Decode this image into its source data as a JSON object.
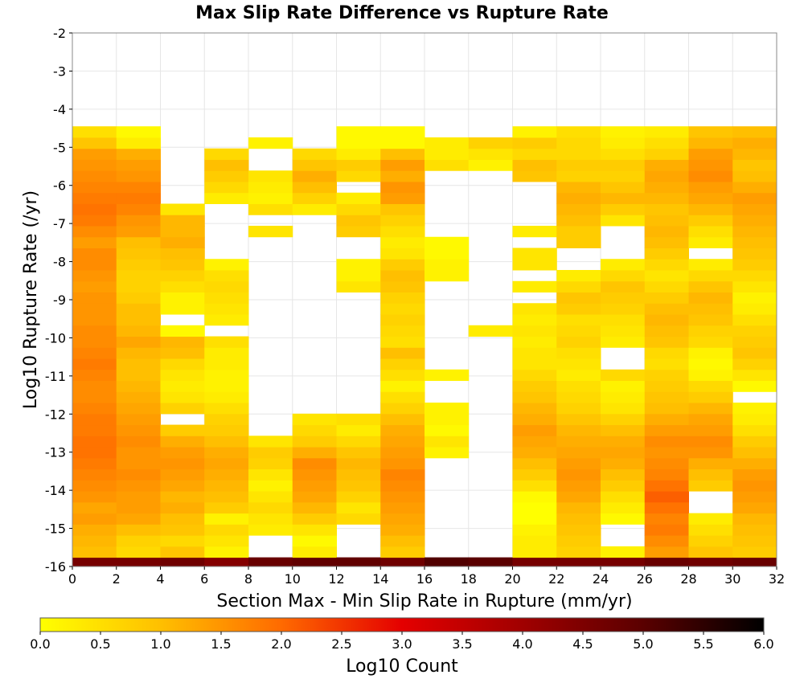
{
  "chart_data": {
    "type": "heatmap",
    "title": "Max Slip Rate Difference vs Rupture Rate",
    "xlabel": "Section Max - Min Slip Rate in Rupture (mm/yr)",
    "ylabel": "Log10 Rupture Rate (/yr)",
    "xlim": [
      0,
      32
    ],
    "ylim": [
      -16,
      -2
    ],
    "x_ticks": [
      "0",
      "2",
      "4",
      "6",
      "8",
      "10",
      "12",
      "14",
      "16",
      "18",
      "20",
      "22",
      "24",
      "26",
      "28",
      "30",
      "32"
    ],
    "y_ticks": [
      "-2",
      "-3",
      "-4",
      "-5",
      "-6",
      "-7",
      "-8",
      "-9",
      "-10",
      "-11",
      "-12",
      "-13",
      "-14",
      "-15",
      "-16"
    ],
    "grid": true,
    "x_bin_width": 2,
    "y_bin_height": 0.29,
    "y_bin_start": -16.05,
    "colorbar": {
      "label": "Log10 Count",
      "min": 0.0,
      "max": 6.0,
      "ticks": [
        "0.0",
        "0.5",
        "1.0",
        "1.5",
        "2.0",
        "2.5",
        "3.0",
        "3.5",
        "4.0",
        "4.5",
        "5.0",
        "5.5",
        "6.0"
      ],
      "stops": [
        {
          "v": 0.0,
          "color": "#ffff00"
        },
        {
          "v": 1.0,
          "color": "#ffbf00"
        },
        {
          "v": 2.0,
          "color": "#ff6a00"
        },
        {
          "v": 3.0,
          "color": "#e40000"
        },
        {
          "v": 4.0,
          "color": "#a00000"
        },
        {
          "v": 5.0,
          "color": "#5a0000"
        },
        {
          "v": 6.0,
          "color": "#000000"
        }
      ]
    },
    "columns": [
      {
        "x0": 0,
        "values": [
          4.6,
          1.0,
          1.1,
          1.2,
          1.4,
          1.3,
          1.5,
          1.6,
          1.7,
          1.8,
          1.9,
          1.9,
          1.8,
          1.8,
          1.7,
          1.6,
          1.6,
          1.7,
          1.8,
          1.7,
          1.6,
          1.6,
          1.5,
          1.5,
          1.5,
          1.4,
          1.5,
          1.6,
          1.6,
          1.4,
          1.6,
          1.8,
          1.9,
          1.8,
          1.7,
          1.6,
          1.5,
          1.4,
          0.9,
          0.5
        ]
      },
      {
        "x0": 2,
        "values": [
          4.6,
          0.6,
          0.7,
          1.0,
          1.3,
          1.4,
          1.4,
          1.5,
          1.6,
          1.5,
          1.5,
          1.6,
          1.5,
          1.4,
          1.3,
          1.2,
          1.1,
          1.0,
          1.0,
          1.1,
          1.3,
          1.1,
          1.0,
          1.0,
          0.8,
          0.7,
          0.7,
          0.8,
          0.9,
          1.0,
          1.4,
          1.5,
          1.7,
          1.8,
          1.7,
          1.5,
          1.4,
          1.2,
          0.3,
          0.1
        ]
      },
      {
        "x0": 4,
        "values": [
          4.7,
          0.9,
          0.6,
          0.9,
          1.0,
          1.2,
          1.1,
          1.3,
          1.4,
          1.5,
          1.4,
          1.2,
          0.8,
          null,
          0.7,
          0.4,
          0.3,
          0.4,
          0.6,
          1.0,
          1.1,
          0.1,
          null,
          0.2,
          0.2,
          0.5,
          0.7,
          0.9,
          1.0,
          1.2,
          1.1,
          1.1,
          0.4,
          null,
          null,
          null,
          null,
          null,
          null,
          null
        ]
      },
      {
        "x0": 6,
        "values": [
          4.4,
          0.2,
          0.4,
          0.6,
          0.2,
          0.8,
          1.0,
          1.1,
          1.2,
          1.3,
          1.2,
          1.0,
          0.8,
          0.7,
          0.5,
          0.3,
          0.2,
          0.2,
          0.3,
          0.3,
          0.5,
          null,
          0.3,
          0.4,
          0.5,
          0.6,
          0.5,
          0.2,
          null,
          null,
          null,
          null,
          null,
          0.3,
          0.6,
          0.8,
          1.0,
          0.6,
          null,
          null
        ]
      },
      {
        "x0": 8,
        "values": [
          4.8,
          null,
          null,
          0.3,
          0.4,
          0.6,
          0.4,
          0.2,
          0.4,
          0.7,
          0.8,
          0.4,
          null,
          null,
          null,
          null,
          null,
          null,
          null,
          null,
          null,
          null,
          null,
          null,
          null,
          null,
          null,
          null,
          null,
          null,
          0.4,
          null,
          0.5,
          0.2,
          0.3,
          0.4,
          null,
          null,
          0.2,
          null
        ]
      },
      {
        "x0": 10,
        "values": [
          4.9,
          0.3,
          0.1,
          0.4,
          0.8,
          1.1,
          1.3,
          1.4,
          1.5,
          1.6,
          1.2,
          0.8,
          0.6,
          0.4,
          null,
          null,
          null,
          null,
          null,
          null,
          null,
          null,
          null,
          null,
          null,
          null,
          null,
          null,
          null,
          null,
          null,
          null,
          0.3,
          0.7,
          1.0,
          1.2,
          0.9,
          0.6,
          null,
          null
        ]
      },
      {
        "x0": 12,
        "values": [
          4.9,
          null,
          null,
          null,
          0.6,
          0.4,
          0.7,
          0.9,
          1.0,
          1.1,
          0.9,
          0.6,
          0.3,
          0.5,
          null,
          null,
          null,
          null,
          null,
          null,
          null,
          null,
          null,
          null,
          null,
          0.4,
          0.2,
          0.2,
          null,
          null,
          0.8,
          0.9,
          0.6,
          0.3,
          null,
          0.6,
          0.8,
          0.3,
          0.1,
          0.1
        ]
      },
      {
        "x0": 14,
        "values": [
          4.7,
          0.8,
          1.0,
          1.2,
          1.3,
          1.4,
          1.5,
          1.6,
          1.7,
          1.5,
          1.4,
          1.3,
          1.2,
          1.0,
          0.7,
          0.5,
          0.2,
          0.5,
          0.7,
          1.0,
          0.5,
          0.6,
          0.7,
          0.6,
          0.7,
          0.9,
          1.0,
          0.8,
          0.4,
          0.3,
          0.5,
          0.7,
          0.9,
          1.4,
          1.5,
          1.2,
          1.4,
          1.0,
          0.1,
          0.1
        ]
      },
      {
        "x0": 16,
        "values": [
          5.1,
          null,
          null,
          null,
          null,
          null,
          null,
          null,
          null,
          null,
          0.2,
          0.4,
          0.1,
          0.2,
          0.2,
          null,
          null,
          0.2,
          null,
          null,
          null,
          null,
          null,
          null,
          null,
          null,
          0.2,
          0.2,
          0.1,
          0.1,
          null,
          null,
          null,
          null,
          null,
          null,
          0.5,
          0.3,
          0.3,
          null
        ]
      },
      {
        "x0": 18,
        "values": [
          5.0,
          null,
          null,
          null,
          null,
          null,
          null,
          null,
          null,
          null,
          null,
          null,
          null,
          null,
          null,
          null,
          null,
          null,
          null,
          null,
          null,
          0.3,
          null,
          null,
          null,
          null,
          null,
          null,
          null,
          null,
          null,
          null,
          null,
          null,
          null,
          null,
          0.2,
          0.4,
          0.7,
          null
        ]
      },
      {
        "x0": 20,
        "values": [
          4.6,
          0.3,
          0.3,
          0.2,
          0.0,
          0.0,
          0.1,
          0.5,
          0.8,
          1.0,
          1.2,
          1.3,
          1.4,
          1.2,
          1.1,
          0.9,
          0.8,
          0.6,
          0.4,
          0.4,
          0.3,
          0.4,
          0.3,
          0.4,
          null,
          0.3,
          null,
          0.4,
          0.4,
          null,
          0.3,
          null,
          null,
          null,
          null,
          0.9,
          1.0,
          0.6,
          0.8,
          0.2
        ]
      },
      {
        "x0": 22,
        "values": [
          4.6,
          0.7,
          0.8,
          0.9,
          1.0,
          1.1,
          1.3,
          1.4,
          1.5,
          1.4,
          1.3,
          1.2,
          1.1,
          0.9,
          0.7,
          0.6,
          0.5,
          0.3,
          0.4,
          0.5,
          0.7,
          0.6,
          0.5,
          0.8,
          0.9,
          0.6,
          0.3,
          null,
          null,
          0.8,
          0.8,
          1.0,
          1.1,
          1.2,
          1.1,
          0.7,
          0.8,
          0.6,
          0.6,
          0.5
        ]
      },
      {
        "x0": 24,
        "values": [
          4.6,
          0.2,
          null,
          null,
          0.1,
          0.3,
          0.5,
          0.8,
          1.0,
          1.2,
          1.3,
          1.2,
          1.0,
          0.7,
          0.4,
          0.3,
          0.2,
          0.6,
          null,
          null,
          0.3,
          0.4,
          0.5,
          0.7,
          0.8,
          0.9,
          0.6,
          0.3,
          null,
          null,
          null,
          0.4,
          0.8,
          1.1,
          0.9,
          0.7,
          0.8,
          0.5,
          0.3,
          0.2
        ]
      },
      {
        "x0": 26,
        "values": [
          4.8,
          1.4,
          1.6,
          1.8,
          1.7,
          1.9,
          2.1,
          1.9,
          1.7,
          1.6,
          1.5,
          1.6,
          1.4,
          1.2,
          1.0,
          0.9,
          0.8,
          0.7,
          0.5,
          0.6,
          0.9,
          1.0,
          1.1,
          1.0,
          0.8,
          0.6,
          0.4,
          0.6,
          0.8,
          1.0,
          1.1,
          1.0,
          0.9,
          1.1,
          1.2,
          1.3,
          1.2,
          0.7,
          0.5,
          0.3
        ]
      },
      {
        "x0": 28,
        "values": [
          4.7,
          0.9,
          0.7,
          0.5,
          0.3,
          null,
          null,
          0.8,
          1.0,
          1.2,
          1.5,
          1.6,
          1.4,
          1.3,
          1.1,
          0.8,
          0.6,
          0.2,
          0.1,
          0.2,
          0.6,
          0.7,
          0.9,
          1.0,
          1.1,
          0.9,
          0.6,
          0.3,
          null,
          0.3,
          0.5,
          0.8,
          1.1,
          1.3,
          1.4,
          1.6,
          1.5,
          1.4,
          1.1,
          0.9
        ]
      },
      {
        "x0": 30,
        "values": [
          4.8,
          0.8,
          0.9,
          1.0,
          1.1,
          1.3,
          1.4,
          1.5,
          1.4,
          1.2,
          1.0,
          0.8,
          0.5,
          0.3,
          0.2,
          null,
          0.1,
          0.4,
          0.7,
          0.9,
          0.8,
          0.7,
          0.5,
          0.3,
          0.2,
          0.4,
          0.6,
          0.8,
          0.9,
          1.0,
          1.1,
          1.2,
          1.3,
          1.4,
          1.2,
          1.0,
          0.9,
          1.1,
          1.2,
          1.0
        ]
      }
    ]
  }
}
